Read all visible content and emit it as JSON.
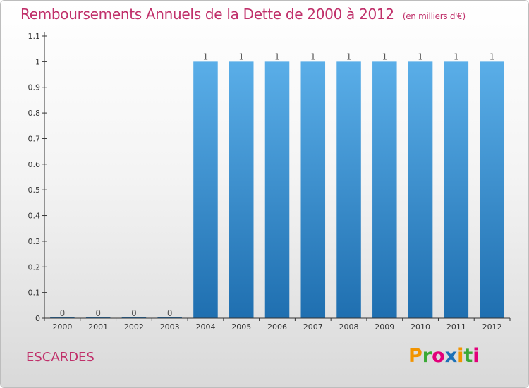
{
  "header": {
    "title": "Remboursements Annuels de la Dette de 2000 à 2012",
    "subtitle": "(en milliers d'€)"
  },
  "footer": {
    "place": "ESCARDES",
    "logo": [
      "P",
      "r",
      "o",
      "x",
      "i",
      "t",
      "i"
    ],
    "logo_colors": [
      "#f29400",
      "#3aa935",
      "#e2007a",
      "#1d71b8",
      "#f29400",
      "#3aa935",
      "#e2007a"
    ]
  },
  "colors": {
    "title": "#c0306a",
    "bar_top": "#5aaee8",
    "bar_bottom": "#1f6fb0",
    "axis": "#333333"
  },
  "chart_data": {
    "type": "bar",
    "title": "Remboursements Annuels de la Dette de 2000 à 2012",
    "xlabel": "",
    "ylabel": "",
    "categories": [
      "2000",
      "2001",
      "2002",
      "2003",
      "2004",
      "2005",
      "2006",
      "2007",
      "2008",
      "2009",
      "2010",
      "2011",
      "2012"
    ],
    "values": [
      0,
      0,
      0,
      0,
      1,
      1,
      1,
      1,
      1,
      1,
      1,
      1,
      1
    ],
    "data_labels": [
      "0",
      "0",
      "0",
      "0",
      "1",
      "1",
      "1",
      "1",
      "1",
      "1",
      "1",
      "1",
      "1"
    ],
    "ylim": [
      0,
      1.1
    ],
    "yticks": [
      0,
      0.1,
      0.2,
      0.3,
      0.4,
      0.5,
      0.6,
      0.7,
      0.8,
      0.9,
      1,
      1.1
    ],
    "ytick_labels": [
      "0",
      "0.1",
      "0.2",
      "0.3",
      "0.4",
      "0.5",
      "0.6",
      "0.7",
      "0.8",
      "0.9",
      "1",
      "1.1"
    ],
    "grid": false,
    "legend": "none"
  }
}
